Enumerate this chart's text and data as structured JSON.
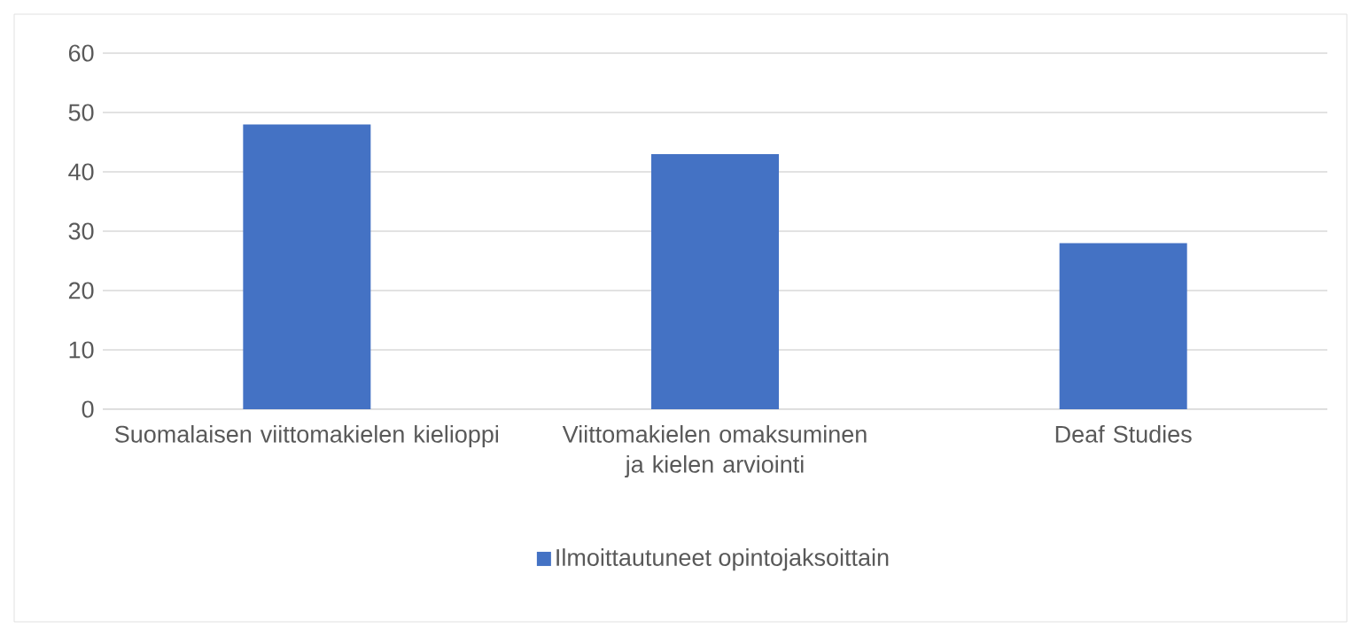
{
  "chart_data": {
    "type": "bar",
    "categories": [
      "Suomalaisen viittomakielen kielioppi",
      "Viittomakielen omaksuminen ja kielen arviointi",
      "Deaf Studies"
    ],
    "series": [
      {
        "name": "Ilmoittautuneet opintojaksoittain",
        "color": "#4472c4",
        "values": [
          48,
          43,
          28
        ]
      }
    ],
    "ylim": [
      0,
      60
    ],
    "yticks": [
      0,
      10,
      20,
      30,
      40,
      50,
      60
    ],
    "grid": "y",
    "legend": "bottom"
  }
}
